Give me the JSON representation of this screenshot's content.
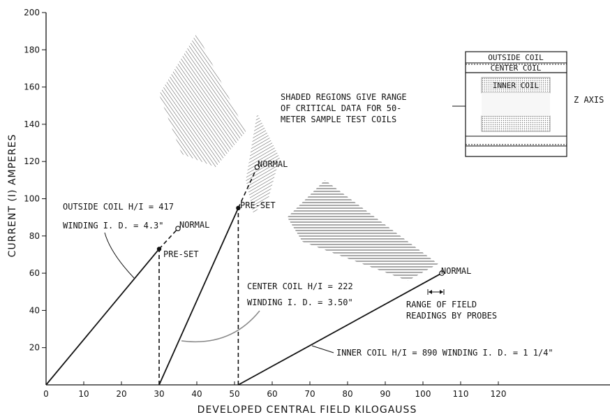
{
  "chart_data": {
    "type": "line",
    "xlabel": "DEVELOPED CENTRAL FIELD KILOGAUSS",
    "ylabel": "CURRENT (I) AMPERES",
    "xlim": [
      0,
      150
    ],
    "ylim": [
      0,
      200
    ],
    "x_ticks": [
      0,
      10,
      20,
      30,
      40,
      50,
      60,
      70,
      80,
      90,
      100,
      110,
      120
    ],
    "x_tick_labels": [
      "0",
      "10",
      "20",
      "30",
      "40",
      "50",
      "60",
      "70",
      "80",
      "90",
      "100",
      "110",
      "120"
    ],
    "y_ticks": [
      20,
      40,
      60,
      80,
      100,
      120,
      140,
      160,
      180,
      200
    ],
    "y_tick_labels": [
      "20",
      "40",
      "60",
      "80",
      "100",
      "120",
      "140",
      "160",
      "180",
      "200"
    ],
    "series": [
      {
        "key": "outside",
        "solid": [
          [
            0,
            0
          ],
          [
            30,
            73
          ]
        ],
        "dashed": [
          [
            30,
            73
          ],
          [
            35,
            84
          ]
        ],
        "drop": [
          [
            30,
            0
          ],
          [
            30,
            73
          ]
        ],
        "preset": [
          30,
          73
        ],
        "normal": [
          35,
          84
        ],
        "preset_label": "PRE-SET",
        "normal_label": "NORMAL",
        "label_lines": [
          "OUTSIDE COIL H/I = 417",
          "WINDING I. D. = 4.3\""
        ]
      },
      {
        "key": "center",
        "solid": [
          [
            30,
            0
          ],
          [
            51,
            95
          ]
        ],
        "dashed": [
          [
            51,
            95
          ],
          [
            56,
            117
          ]
        ],
        "drop": [
          [
            51,
            0
          ],
          [
            51,
            95
          ]
        ],
        "preset": [
          51,
          95
        ],
        "normal": [
          56,
          117
        ],
        "preset_label": "PRE-SET",
        "normal_label": "NORMAL",
        "label_lines": [
          "CENTER COIL H/I = 222",
          "WINDING I. D. = 3.50\""
        ]
      },
      {
        "key": "inner",
        "solid": [
          [
            51,
            0
          ],
          [
            105,
            60
          ]
        ],
        "normal": [
          105,
          60
        ],
        "normal_label": "NORMAL",
        "label_lines": [
          "INNER COIL H/I = 890  WINDING I. D. = 1 1/4\""
        ]
      }
    ],
    "shaded_regions": [
      [
        [
          40,
          189
        ],
        [
          53,
          136
        ],
        [
          45,
          117
        ],
        [
          36,
          124
        ],
        [
          30,
          156
        ]
      ],
      [
        [
          56,
          146
        ],
        [
          62,
          122
        ],
        [
          59,
          100
        ],
        [
          55,
          92
        ],
        [
          53,
          110
        ]
      ],
      [
        [
          74,
          110
        ],
        [
          104,
          65
        ],
        [
          96,
          56
        ],
        [
          68,
          77
        ],
        [
          64,
          90
        ]
      ]
    ],
    "annotations": [
      {
        "key": "shaded",
        "lines": [
          "SHADED REGIONS GIVE RANGE",
          "OF CRITICAL DATA FOR 50-",
          "METER SAMPLE TEST COILS"
        ]
      },
      {
        "key": "range",
        "lines": [
          "RANGE OF FIELD",
          "READINGS BY PROBES"
        ]
      }
    ],
    "inset": {
      "outside_label": "OUTSIDE COIL",
      "center_label": "CENTER COIL",
      "inner_label": "INNER COIL",
      "axis_label": "Z AXIS"
    }
  }
}
